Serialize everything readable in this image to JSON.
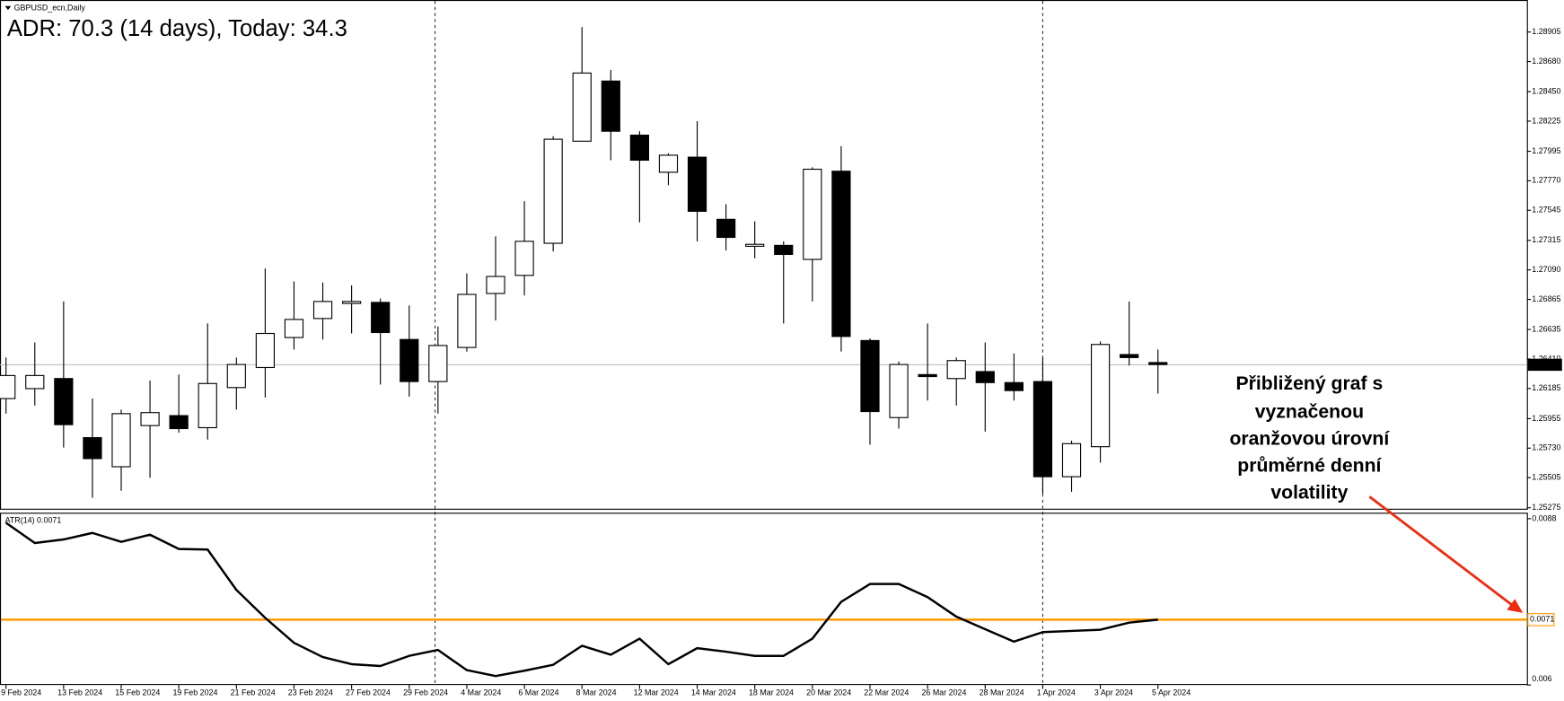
{
  "chart_data": [
    {
      "type": "candlestick",
      "title": "GBPUSD_ecn,Daily",
      "subtitle": "ADR: 70.3 (14 days), Today: 34.3",
      "annotation_lines": [
        "Přibližený graf s",
        "vyznačenou",
        "oranžovou úrovní",
        "průměrné denní",
        "volatility"
      ],
      "categories": [
        "9 Feb 2024",
        null,
        "13 Feb 2024",
        null,
        "15 Feb 2024",
        null,
        "19 Feb 2024",
        null,
        "21 Feb 2024",
        null,
        "23 Feb 2024",
        null,
        "27 Feb 2024",
        null,
        "29 Feb 2024",
        null,
        "4 Mar 2024",
        null,
        "6 Mar 2024",
        null,
        "8 Mar 2024",
        null,
        "12 Mar 2024",
        null,
        "14 Mar 2024",
        null,
        "18 Mar 2024",
        null,
        "20 Mar 2024",
        null,
        "22 Mar 2024",
        null,
        "26 Mar 2024",
        null,
        "28 Mar 2024",
        null,
        "1 Apr 2024",
        null,
        "3 Apr 2024",
        null,
        "5 Apr 2024"
      ],
      "open": [
        1.26108,
        1.26184,
        1.26261,
        1.2581,
        1.25588,
        1.25902,
        1.25978,
        1.25886,
        1.26192,
        1.26345,
        1.26574,
        1.26719,
        1.26834,
        1.26842,
        1.26559,
        1.26238,
        1.26498,
        1.2691,
        1.27048,
        1.27293,
        1.28072,
        1.28531,
        1.28118,
        1.27835,
        1.2795,
        1.27476,
        1.2727,
        1.27277,
        1.2717,
        1.27843,
        1.26551,
        1.25963,
        1.26291,
        1.26261,
        1.26314,
        1.2623,
        1.26238,
        1.25512,
        1.25741,
        1.26444,
        1.26383
      ],
      "high": [
        1.26421,
        1.26536,
        1.26849,
        1.26108,
        1.26024,
        1.26246,
        1.26291,
        1.26681,
        1.26421,
        1.27101,
        1.27002,
        1.26994,
        1.26972,
        1.26872,
        1.26819,
        1.26658,
        1.27063,
        1.27346,
        1.27614,
        1.2811,
        1.28943,
        1.28615,
        1.28148,
        1.2798,
        1.28225,
        1.27591,
        1.27461,
        1.27308,
        1.27873,
        1.28034,
        1.26567,
        1.26391,
        1.26681,
        1.26421,
        1.26536,
        1.26452,
        1.26421,
        1.25787,
        1.26544,
        1.26849,
        1.26482
      ],
      "low": [
        1.25993,
        1.26055,
        1.25734,
        1.25351,
        1.25405,
        1.25504,
        1.25848,
        1.25795,
        1.26024,
        1.26116,
        1.26482,
        1.26559,
        1.26605,
        1.26215,
        1.26123,
        1.25993,
        1.26467,
        1.26704,
        1.26895,
        1.27231,
        1.28072,
        1.27927,
        1.27453,
        1.27736,
        1.27308,
        1.27239,
        1.27178,
        1.26681,
        1.26849,
        1.26467,
        1.25756,
        1.25879,
        1.26093,
        1.26055,
        1.25856,
        1.26093,
        1.25382,
        1.25397,
        1.25619,
        1.2636,
        1.26146
      ],
      "close": [
        1.26284,
        1.26284,
        1.25909,
        1.2565,
        1.25993,
        1.26001,
        1.25879,
        1.26223,
        1.26368,
        1.26605,
        1.26712,
        1.26849,
        1.26849,
        1.26612,
        1.26238,
        1.26513,
        1.26903,
        1.2704,
        1.27308,
        1.28087,
        1.28592,
        1.28148,
        1.27927,
        1.27965,
        1.27537,
        1.27338,
        1.27285,
        1.27208,
        1.27858,
        1.26582,
        1.26009,
        1.26368,
        1.26276,
        1.26398,
        1.2623,
        1.26169,
        1.25512,
        1.25764,
        1.26521,
        1.26421,
        1.26368
      ],
      "up_color": "#ffffff",
      "down_color": "#000000",
      "last_price": 1.26366,
      "ylim": [
        1.2526,
        1.29134
      ],
      "yticks": [
        1.28905,
        {
          "value": 1.2868,
          "label": "1.28680"
        },
        {
          "value": 1.2845,
          "label": "1.28450"
        },
        1.28225,
        1.27995,
        {
          "value": 1.2777,
          "label": "1.27770"
        },
        1.27545,
        1.27315,
        {
          "value": 1.2709,
          "label": "1.27090"
        },
        1.26865,
        1.26635,
        {
          "value": 1.2641,
          "label": "1.26410"
        },
        1.26185,
        1.25955,
        {
          "value": 1.2573,
          "label": "1.25730"
        },
        1.25505,
        1.25275
      ]
    },
    {
      "type": "line",
      "title": "ATR(14) 0.0071",
      "color": "#000000",
      "values": [
        0.00873,
        0.00839,
        0.00845,
        0.00856,
        0.00841,
        0.00853,
        0.00829,
        0.00828,
        0.0076,
        0.00713,
        0.00671,
        0.00647,
        0.00635,
        0.00632,
        0.00649,
        0.00659,
        0.00625,
        0.00615,
        0.00624,
        0.00634,
        0.00666,
        0.00651,
        0.00678,
        0.00635,
        0.00662,
        0.00656,
        0.00649,
        0.00649,
        0.00678,
        0.0074,
        0.0077,
        0.0077,
        0.00748,
        0.00715,
        0.00694,
        0.00673,
        0.00689,
        0.00691,
        0.00693,
        0.00705,
        0.0071
      ],
      "level": 0.0071,
      "level_color": "#ff9900",
      "ylim": [
        0.006,
        0.0089
      ],
      "yticks": [
        0.0088,
        0.006
      ]
    }
  ]
}
